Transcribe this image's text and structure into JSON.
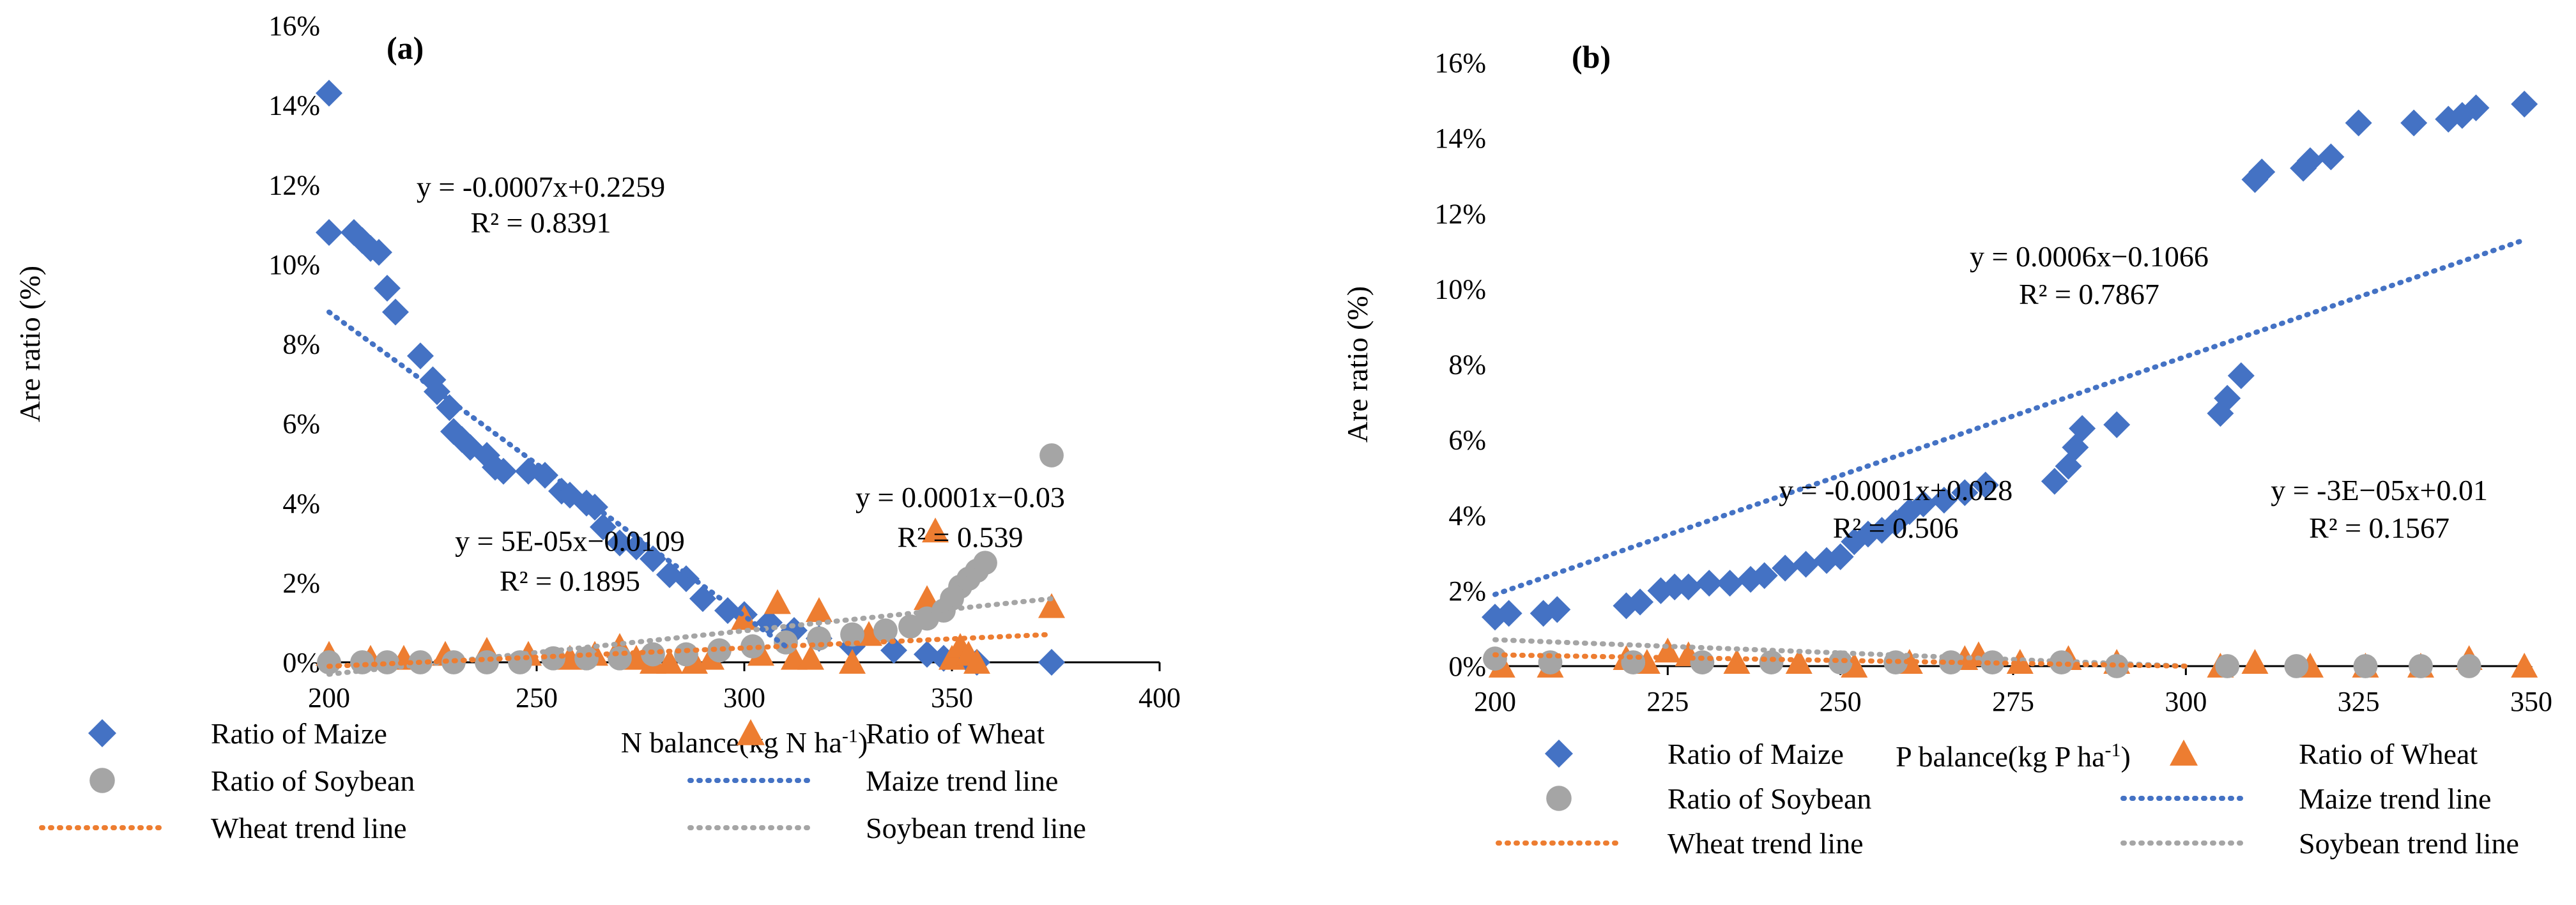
{
  "chart_data": [
    {
      "type": "scatter",
      "panel_label": "(a)",
      "xlabel_main": "N balance(kg N ha",
      "xlabel_sup": "-1",
      "xlabel_tail": ")",
      "ylabel": "Are ratio (%)",
      "xlim": [
        200,
        400
      ],
      "ylim": [
        0,
        16
      ],
      "xticks": [
        "200",
        "250",
        "300",
        "350",
        "400"
      ],
      "yticks": [
        "0%",
        "2%",
        "4%",
        "6%",
        "8%",
        "10%",
        "12%",
        "14%",
        "16%"
      ],
      "colors": {
        "maize": "#4472C4",
        "wheat": "#ED7D31",
        "soybean": "#A5A5A5"
      },
      "series": [
        {
          "name": "Ratio of Maize",
          "kind": "maize",
          "x": [
            200,
            200,
            206,
            208,
            210,
            212,
            214,
            216,
            222,
            225,
            226,
            229,
            230,
            232,
            234,
            238,
            240,
            242,
            248,
            252,
            256,
            258,
            262,
            264,
            266,
            270,
            274,
            278,
            282,
            286,
            290,
            296,
            300,
            306,
            312,
            318,
            326,
            336,
            344,
            348,
            354,
            356,
            374
          ],
          "y": [
            14.3,
            10.8,
            10.8,
            10.6,
            10.4,
            10.3,
            9.4,
            8.8,
            7.7,
            7.1,
            6.8,
            6.4,
            5.8,
            5.6,
            5.4,
            5.2,
            4.9,
            4.8,
            4.8,
            4.7,
            4.3,
            4.2,
            4.0,
            3.9,
            3.4,
            3.0,
            2.9,
            2.6,
            2.2,
            2.1,
            1.6,
            1.3,
            1.2,
            1.0,
            0.8,
            0.6,
            0.4,
            0.3,
            0.2,
            0.1,
            0.05,
            0.0,
            0.0
          ]
        },
        {
          "name": "Ratio of Wheat",
          "kind": "wheat",
          "x": [
            200,
            210,
            218,
            228,
            238,
            248,
            258,
            264,
            270,
            274,
            278,
            282,
            288,
            292,
            300,
            304,
            308,
            312,
            316,
            318,
            326,
            330,
            344,
            346,
            350,
            352,
            354,
            356,
            374
          ],
          "y": [
            0.2,
            0.1,
            0.1,
            0.2,
            0.3,
            0.2,
            0.1,
            0.2,
            0.4,
            0.1,
            0.0,
            0.0,
            0.0,
            0.1,
            1.1,
            0.2,
            1.5,
            0.1,
            0.1,
            1.3,
            0.0,
            0.7,
            1.6,
            3.3,
            0.1,
            0.4,
            0.2,
            0.0,
            1.4
          ]
        },
        {
          "name": "Ratio of Soybean",
          "kind": "soybean",
          "x": [
            200,
            208,
            214,
            222,
            230,
            238,
            246,
            254,
            262,
            270,
            278,
            286,
            294,
            302,
            310,
            318,
            326,
            334,
            340,
            344,
            348,
            350,
            352,
            354,
            356,
            358,
            374
          ],
          "y": [
            0.0,
            0.0,
            0.0,
            0.0,
            0.0,
            0.0,
            0.0,
            0.1,
            0.1,
            0.1,
            0.2,
            0.2,
            0.3,
            0.4,
            0.5,
            0.6,
            0.7,
            0.8,
            0.9,
            1.1,
            1.3,
            1.6,
            1.9,
            2.1,
            2.3,
            2.5,
            5.2
          ]
        },
        {
          "name": "Maize trend line",
          "kind": "maize",
          "trend": true,
          "x": [
            200,
            310
          ]
        },
        {
          "name": "Wheat trend line",
          "kind": "wheat",
          "trend": true,
          "x": [
            200,
            374
          ]
        },
        {
          "name": "Soybean trend line",
          "kind": "soybean",
          "trend": true,
          "x": [
            200,
            374
          ]
        }
      ],
      "trendlines": {
        "maize": {
          "x": [
            200,
            310
          ],
          "y": [
            8.8,
            0.4
          ]
        },
        "wheat": {
          "x": [
            200,
            374
          ],
          "y": [
            -0.1,
            0.7
          ]
        },
        "soybean": {
          "x": [
            200,
            374
          ],
          "y": [
            -0.3,
            1.6
          ]
        }
      },
      "annotations": [
        {
          "id": "maize-eq",
          "text": "y = -0.0007x+0.2259",
          "x": 251,
          "y": 11.7
        },
        {
          "id": "maize-r2",
          "text": "R² = 0.8391",
          "x": 251,
          "y": 10.8
        },
        {
          "id": "wheat-eq",
          "text": "y = 0.0001x−0.03",
          "x": 352,
          "y": 3.9
        },
        {
          "id": "wheat-r2",
          "text": "R² = 0.539",
          "x": 352,
          "y": 2.9
        },
        {
          "id": "soy-eq",
          "text": "y = 5E-05x−0.0109",
          "x": 258,
          "y": 2.8
        },
        {
          "id": "soy-r2",
          "text": "R² = 0.1895",
          "x": 258,
          "y": 1.8
        }
      ],
      "legend": [
        {
          "label": "Ratio of Maize",
          "kind": "maize",
          "marker": "diamond"
        },
        {
          "label": "Ratio of Wheat",
          "kind": "wheat",
          "marker": "triangle"
        },
        {
          "label": "Ratio of Soybean",
          "kind": "soybean",
          "marker": "circle"
        },
        {
          "label": "Maize trend line",
          "kind": "maize",
          "marker": "dotted-line"
        },
        {
          "label": "Wheat trend line",
          "kind": "wheat",
          "marker": "dotted-line"
        },
        {
          "label": "Soybean trend line",
          "kind": "soybean",
          "marker": "dotted-line"
        }
      ]
    },
    {
      "type": "scatter",
      "panel_label": "(b)",
      "xlabel_main": "P balance(kg P ha",
      "xlabel_sup": "-1",
      "xlabel_tail": ")",
      "ylabel": "Are ratio (%)",
      "xlim": [
        200,
        350
      ],
      "ylim": [
        0,
        16
      ],
      "xticks": [
        "200",
        "225",
        "250",
        "275",
        "300",
        "325",
        "350"
      ],
      "yticks": [
        "0%",
        "2%",
        "4%",
        "6%",
        "8%",
        "10%",
        "12%",
        "14%",
        "16%"
      ],
      "colors": {
        "maize": "#4472C4",
        "wheat": "#ED7D31",
        "soybean": "#A5A5A5"
      },
      "series": [
        {
          "name": "Ratio of Maize",
          "kind": "maize",
          "x": [
            200,
            202,
            207,
            209,
            219,
            221,
            224,
            226,
            228,
            231,
            234,
            237,
            239,
            242,
            245,
            248,
            250,
            252,
            254,
            256,
            258,
            260,
            262,
            265,
            268,
            271,
            281,
            283,
            284,
            285,
            290,
            305,
            306,
            308,
            310,
            311,
            317,
            318,
            321,
            325,
            333,
            338,
            340,
            342,
            349
          ],
          "y": [
            1.3,
            1.4,
            1.4,
            1.5,
            1.6,
            1.7,
            2.0,
            2.1,
            2.1,
            2.2,
            2.2,
            2.3,
            2.4,
            2.6,
            2.7,
            2.8,
            2.9,
            3.3,
            3.5,
            3.6,
            3.8,
            4.1,
            4.3,
            4.4,
            4.6,
            4.8,
            4.9,
            5.3,
            5.8,
            6.3,
            6.4,
            6.7,
            7.1,
            7.7,
            12.9,
            13.1,
            13.2,
            13.4,
            13.5,
            14.4,
            14.4,
            14.5,
            14.6,
            14.8,
            14.9
          ]
        },
        {
          "name": "Ratio of Wheat",
          "kind": "wheat",
          "x": [
            201,
            208,
            219,
            222,
            225,
            228,
            235,
            244,
            252,
            260,
            268,
            270,
            276,
            283,
            290,
            305,
            310,
            318,
            326,
            334,
            341,
            349
          ],
          "y": [
            0.0,
            0.0,
            0.2,
            0.1,
            0.4,
            0.3,
            0.1,
            0.1,
            0.0,
            0.1,
            0.2,
            0.3,
            0.1,
            0.2,
            0.1,
            0.0,
            0.1,
            0.0,
            0.0,
            0.0,
            0.2,
            0.0
          ]
        },
        {
          "name": "Ratio of Soybean",
          "kind": "soybean",
          "x": [
            200,
            208,
            220,
            230,
            240,
            250,
            258,
            266,
            272,
            282,
            290,
            306,
            316,
            326,
            334,
            341
          ],
          "y": [
            0.2,
            0.1,
            0.1,
            0.1,
            0.1,
            0.1,
            0.1,
            0.1,
            0.1,
            0.1,
            0.0,
            0.0,
            0.0,
            0.0,
            0.0,
            0.0
          ]
        },
        {
          "name": "Maize trend line",
          "kind": "maize",
          "trend": true,
          "x": [
            200,
            349
          ]
        },
        {
          "name": "Wheat trend line",
          "kind": "wheat",
          "trend": true,
          "x": [
            200,
            300
          ]
        },
        {
          "name": "Soybean trend line",
          "kind": "soybean",
          "trend": true,
          "x": [
            200,
            300
          ]
        }
      ],
      "trendlines": {
        "maize": {
          "x": [
            200,
            349
          ],
          "y": [
            1.9,
            11.3
          ]
        },
        "wheat": {
          "x": [
            200,
            300
          ],
          "y": [
            0.3,
            0.0
          ]
        },
        "soybean": {
          "x": [
            200,
            300
          ],
          "y": [
            0.7,
            0.0
          ]
        }
      },
      "annotations": [
        {
          "id": "maize-eq",
          "text": "y = 0.0006x−0.1066",
          "x": 286,
          "y": 10.6
        },
        {
          "id": "maize-r2",
          "text": "R² = 0.7867",
          "x": 286,
          "y": 9.6
        },
        {
          "id": "wheat-eq",
          "text": "y = -0.0001x+0.028",
          "x": 258,
          "y": 4.4
        },
        {
          "id": "wheat-r2",
          "text": "R² = 0.506",
          "x": 258,
          "y": 3.4
        },
        {
          "id": "soy-eq",
          "text": "y = -3E−05x+0.01",
          "x": 328,
          "y": 4.4
        },
        {
          "id": "soy-r2",
          "text": "R² = 0.1567",
          "x": 328,
          "y": 3.4
        }
      ],
      "legend": [
        {
          "label": "Ratio of Maize",
          "kind": "maize",
          "marker": "diamond"
        },
        {
          "label": "Ratio of Wheat",
          "kind": "wheat",
          "marker": "triangle"
        },
        {
          "label": "Ratio of Soybean",
          "kind": "soybean",
          "marker": "circle"
        },
        {
          "label": "Maize trend line",
          "kind": "maize",
          "marker": "dotted-line"
        },
        {
          "label": "Wheat trend line",
          "kind": "wheat",
          "marker": "dotted-line"
        },
        {
          "label": "Soybean trend line",
          "kind": "soybean",
          "marker": "dotted-line"
        }
      ]
    }
  ]
}
